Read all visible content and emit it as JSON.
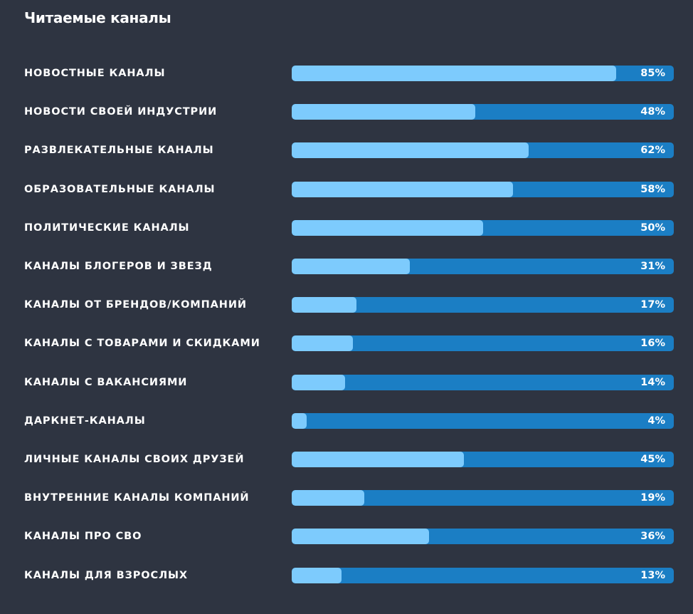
{
  "chart_data": {
    "type": "bar",
    "orientation": "horizontal",
    "title": "Читаемые каналы",
    "categories": [
      "НОВОСТНЫЕ КАНАЛЫ",
      "НОВОСТИ СВОЕЙ ИНДУСТРИИ",
      "РАЗВЛЕКАТЕЛЬНЫЕ КАНАЛЫ",
      "ОБРАЗОВАТЕЛЬНЫЕ КАНАЛЫ",
      "ПОЛИТИЧЕСКИЕ КАНАЛЫ",
      "КАНАЛЫ БЛОГЕРОВ И ЗВЕЗД",
      "КАНАЛЫ ОТ БРЕНДОВ/КОМПАНИЙ",
      "КАНАЛЫ С ТОВАРАМИ И СКИДКАМИ",
      "КАНАЛЫ С ВАКАНСИЯМИ",
      "ДАРКНЕТ-КАНАЛЫ",
      "ЛИЧНЫЕ КАНАЛЫ СВОИХ ДРУЗЕЙ",
      "ВНУТРЕННИЕ КАНАЛЫ КОМПАНИЙ",
      "КАНАЛЫ ПРО СВО",
      "КАНАЛЫ ДЛЯ ВЗРОСЛЫХ"
    ],
    "values": [
      85,
      48,
      62,
      58,
      50,
      31,
      17,
      16,
      14,
      4,
      45,
      19,
      36,
      13
    ],
    "value_labels": [
      "85%",
      "48%",
      "62%",
      "58%",
      "50%",
      "31%",
      "17%",
      "16%",
      "14%",
      "4%",
      "45%",
      "19%",
      "36%",
      "13%"
    ],
    "xlim": [
      0,
      100
    ],
    "grid": false,
    "legend": false,
    "colors": {
      "background": "#2e3441",
      "track": "#1b7ec4",
      "fill": "#7dcbfd",
      "text": "#ffffff"
    }
  }
}
